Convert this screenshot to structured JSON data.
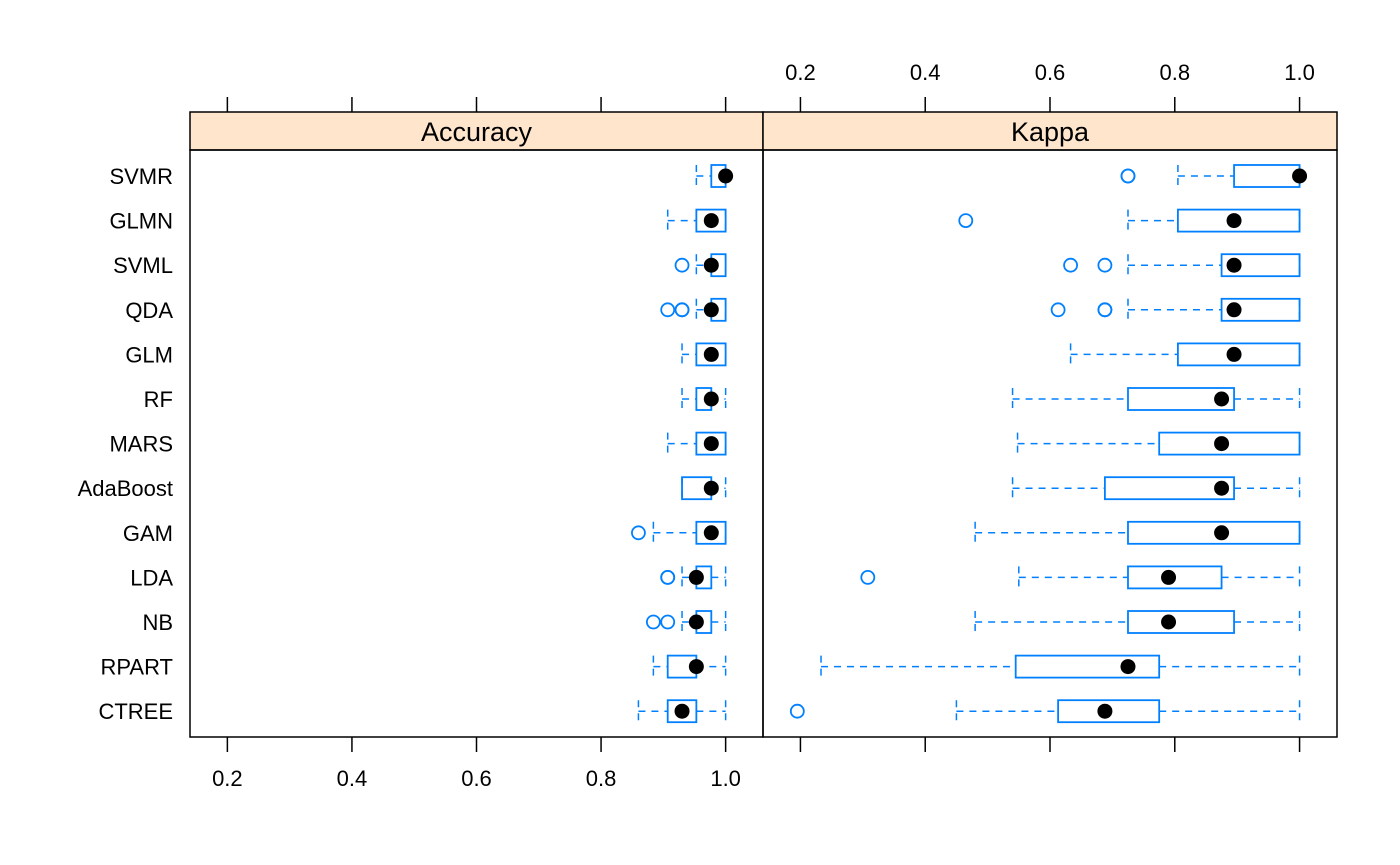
{
  "colors": {
    "strip": "#ffe5cc",
    "box": "#0080ff",
    "median": "#000000",
    "frame": "#000000"
  },
  "chart_data": {
    "type": "box",
    "models": [
      "SVMR",
      "GLMN",
      "SVML",
      "QDA",
      "GLM",
      "RF",
      "MARS",
      "AdaBoost",
      "GAM",
      "LDA",
      "NB",
      "RPART",
      "CTREE"
    ],
    "panels": [
      {
        "strip_label": "Accuracy",
        "xlim": [
          0.14,
          1.06
        ],
        "ticks": [
          0.2,
          0.4,
          0.6,
          0.8,
          1.0
        ],
        "tick_labels": [
          "0.2",
          "0.4",
          "0.6",
          "0.8",
          "1.0"
        ],
        "boxes": [
          {
            "model": "SVMR",
            "wmin": 0.953,
            "q1": 0.977,
            "median": 1.0,
            "q3": 1.0,
            "wmax": 1.0,
            "outliers": []
          },
          {
            "model": "GLMN",
            "wmin": 0.907,
            "q1": 0.953,
            "median": 0.977,
            "q3": 1.0,
            "wmax": 1.0,
            "outliers": []
          },
          {
            "model": "SVML",
            "wmin": 0.953,
            "q1": 0.977,
            "median": 0.977,
            "q3": 1.0,
            "wmax": 1.0,
            "outliers": [
              0.93
            ]
          },
          {
            "model": "QDA",
            "wmin": 0.953,
            "q1": 0.977,
            "median": 0.977,
            "q3": 1.0,
            "wmax": 1.0,
            "outliers": [
              0.907,
              0.93,
              0.93
            ]
          },
          {
            "model": "GLM",
            "wmin": 0.93,
            "q1": 0.953,
            "median": 0.977,
            "q3": 1.0,
            "wmax": 1.0,
            "outliers": []
          },
          {
            "model": "RF",
            "wmin": 0.93,
            "q1": 0.953,
            "median": 0.977,
            "q3": 0.977,
            "wmax": 1.0,
            "outliers": []
          },
          {
            "model": "MARS",
            "wmin": 0.907,
            "q1": 0.953,
            "median": 0.977,
            "q3": 1.0,
            "wmax": 1.0,
            "outliers": []
          },
          {
            "model": "AdaBoost",
            "wmin": 0.93,
            "q1": 0.93,
            "median": 0.977,
            "q3": 0.977,
            "wmax": 1.0,
            "outliers": []
          },
          {
            "model": "GAM",
            "wmin": 0.884,
            "q1": 0.953,
            "median": 0.977,
            "q3": 1.0,
            "wmax": 1.0,
            "outliers": [
              0.86
            ]
          },
          {
            "model": "LDA",
            "wmin": 0.93,
            "q1": 0.953,
            "median": 0.953,
            "q3": 0.977,
            "wmax": 1.0,
            "outliers": [
              0.907,
              0.907
            ]
          },
          {
            "model": "NB",
            "wmin": 0.93,
            "q1": 0.953,
            "median": 0.953,
            "q3": 0.977,
            "wmax": 1.0,
            "outliers": [
              0.884,
              0.907
            ]
          },
          {
            "model": "RPART",
            "wmin": 0.884,
            "q1": 0.907,
            "median": 0.953,
            "q3": 0.953,
            "wmax": 1.0,
            "outliers": []
          },
          {
            "model": "CTREE",
            "wmin": 0.86,
            "q1": 0.907,
            "median": 0.93,
            "q3": 0.953,
            "wmax": 1.0,
            "outliers": []
          }
        ]
      },
      {
        "strip_label": "Kappa",
        "xlim": [
          0.14,
          1.06
        ],
        "ticks": [
          0.2,
          0.4,
          0.6,
          0.8,
          1.0
        ],
        "tick_labels": [
          "0.2",
          "0.4",
          "0.6",
          "0.8",
          "1.0"
        ],
        "boxes": [
          {
            "model": "SVMR",
            "wmin": 0.805,
            "q1": 0.895,
            "median": 1.0,
            "q3": 1.0,
            "wmax": 1.0,
            "outliers": [
              0.725,
              0.725
            ]
          },
          {
            "model": "GLMN",
            "wmin": 0.725,
            "q1": 0.805,
            "median": 0.895,
            "q3": 1.0,
            "wmax": 1.0,
            "outliers": [
              0.465
            ]
          },
          {
            "model": "SVML",
            "wmin": 0.725,
            "q1": 0.875,
            "median": 0.895,
            "q3": 1.0,
            "wmax": 1.0,
            "outliers": [
              0.633,
              0.688
            ]
          },
          {
            "model": "QDA",
            "wmin": 0.725,
            "q1": 0.875,
            "median": 0.895,
            "q3": 1.0,
            "wmax": 1.0,
            "outliers": [
              0.613,
              0.688,
              0.688
            ]
          },
          {
            "model": "GLM",
            "wmin": 0.633,
            "q1": 0.805,
            "median": 0.895,
            "q3": 1.0,
            "wmax": 1.0,
            "outliers": []
          },
          {
            "model": "RF",
            "wmin": 0.54,
            "q1": 0.725,
            "median": 0.875,
            "q3": 0.895,
            "wmax": 1.0,
            "outliers": []
          },
          {
            "model": "MARS",
            "wmin": 0.548,
            "q1": 0.775,
            "median": 0.875,
            "q3": 1.0,
            "wmax": 1.0,
            "outliers": []
          },
          {
            "model": "AdaBoost",
            "wmin": 0.54,
            "q1": 0.688,
            "median": 0.875,
            "q3": 0.895,
            "wmax": 1.0,
            "outliers": []
          },
          {
            "model": "GAM",
            "wmin": 0.48,
            "q1": 0.725,
            "median": 0.875,
            "q3": 1.0,
            "wmax": 1.0,
            "outliers": []
          },
          {
            "model": "LDA",
            "wmin": 0.55,
            "q1": 0.725,
            "median": 0.79,
            "q3": 0.875,
            "wmax": 1.0,
            "outliers": [
              0.308
            ]
          },
          {
            "model": "NB",
            "wmin": 0.48,
            "q1": 0.725,
            "median": 0.79,
            "q3": 0.895,
            "wmax": 1.0,
            "outliers": []
          },
          {
            "model": "RPART",
            "wmin": 0.233,
            "q1": 0.545,
            "median": 0.725,
            "q3": 0.775,
            "wmax": 1.0,
            "outliers": []
          },
          {
            "model": "CTREE",
            "wmin": 0.45,
            "q1": 0.613,
            "median": 0.688,
            "q3": 0.775,
            "wmax": 1.0,
            "outliers": [
              0.195
            ]
          }
        ]
      }
    ]
  }
}
